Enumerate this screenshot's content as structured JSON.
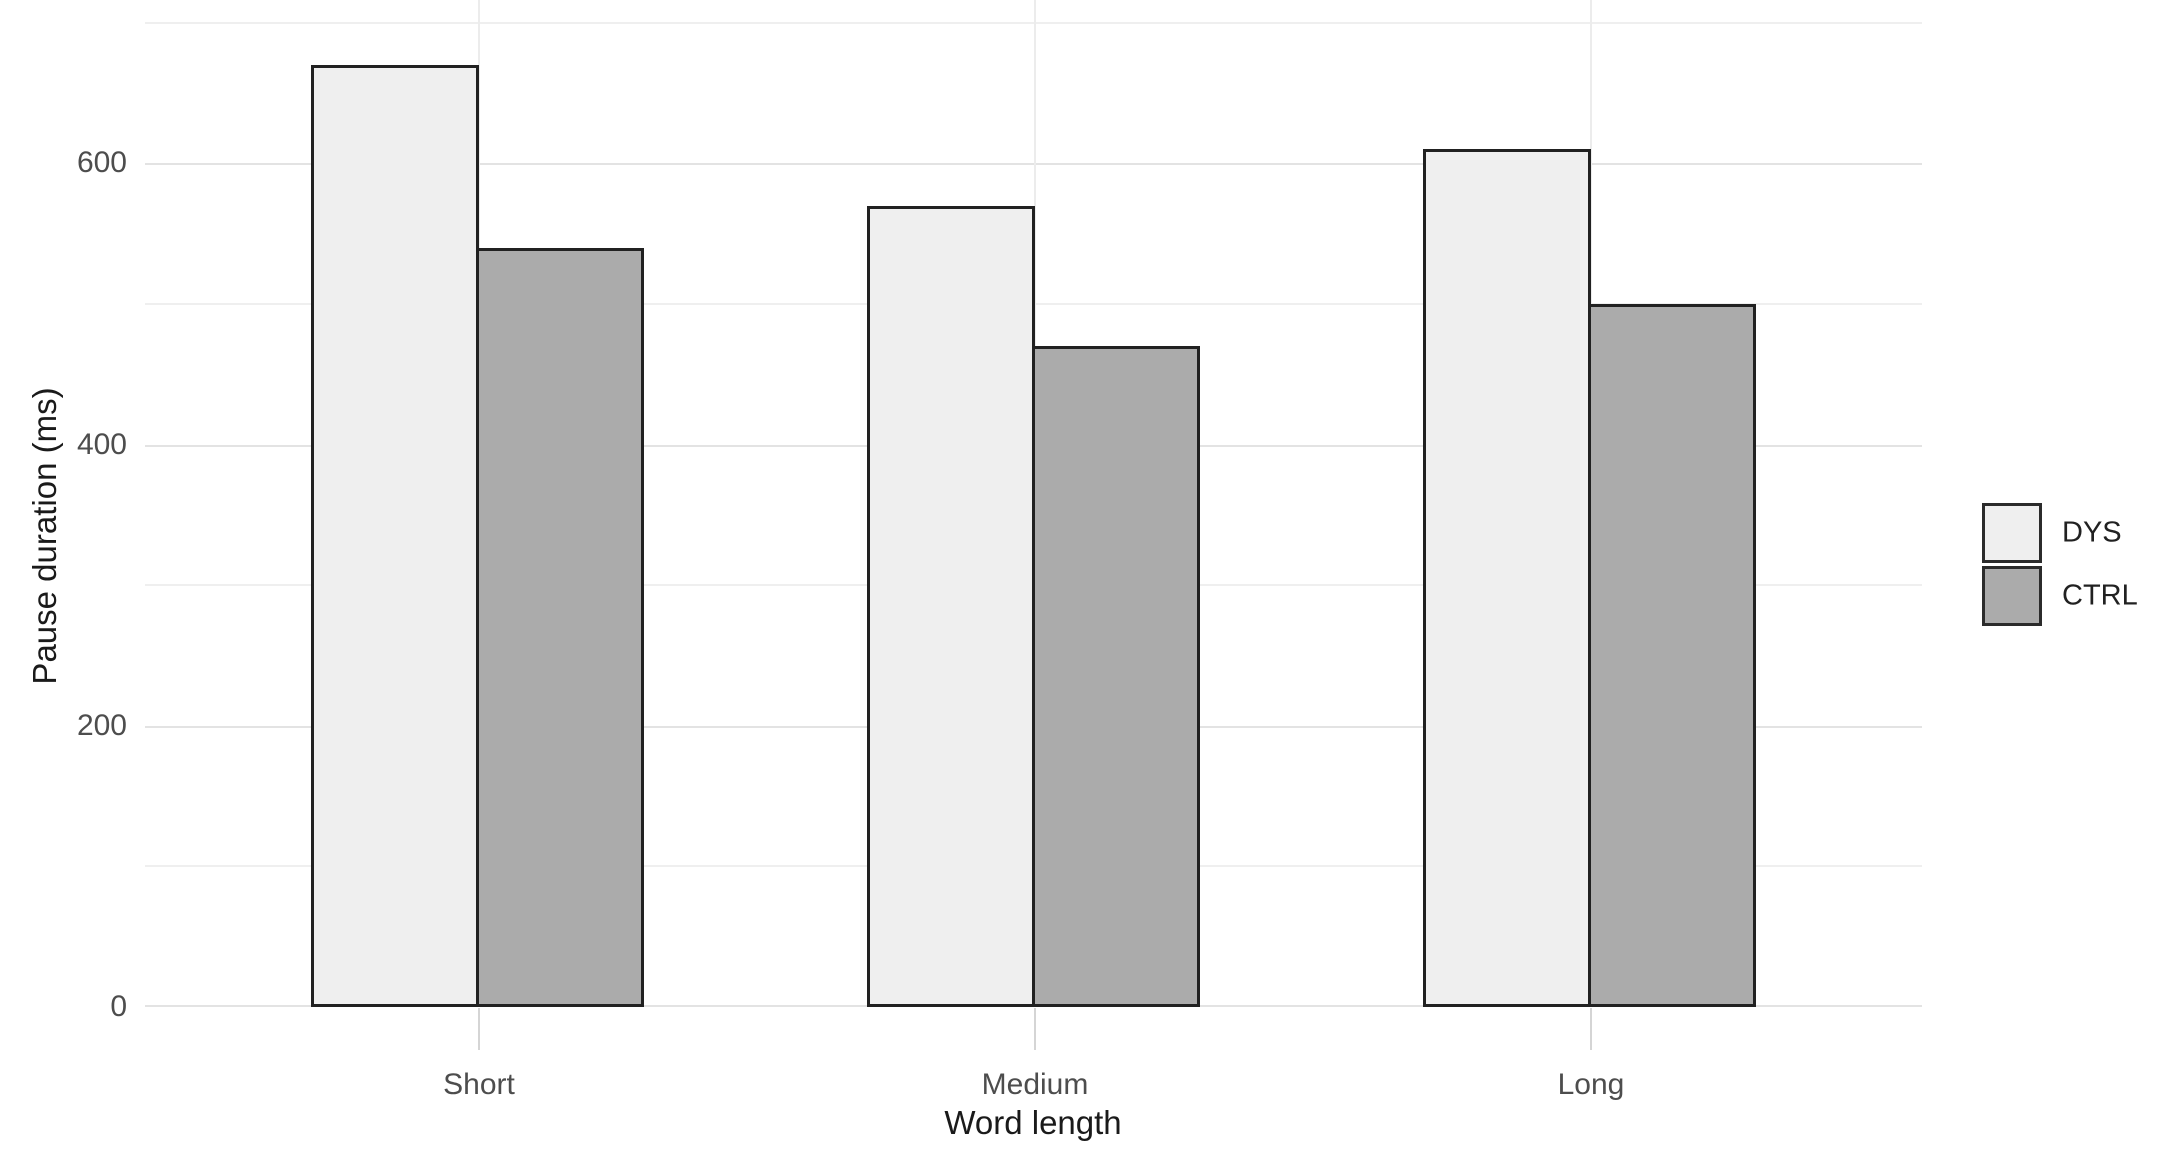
{
  "chart_data": {
    "type": "bar",
    "title": "",
    "categories": [
      "Short",
      "Medium",
      "Long"
    ],
    "series": [
      {
        "name": "DYS",
        "values": [
          670,
          570,
          610
        ]
      },
      {
        "name": "CTRL",
        "values": [
          540,
          470,
          500
        ]
      }
    ],
    "xlabel": "Word length",
    "ylabel": "Pause duration (ms)",
    "ylim": [
      0,
      716
    ],
    "yticks": [
      0,
      200,
      400,
      600
    ],
    "yticks_minor": [
      100,
      300,
      500,
      700
    ],
    "grid": "horizontal major+minor light gray; vertical gridline at each category center",
    "legend_position": "right-middle",
    "legend_entries": [
      "DYS",
      "CTRL"
    ]
  },
  "colors": {
    "background": "#ffffff",
    "dys_fill": "#efefef",
    "ctrl_fill": "#ababab",
    "bar_border": "#212121",
    "grid_major": "#e3e3e3",
    "grid_minor": "#efefef",
    "grid_vertical": "#ececec",
    "tick_mark": "#d5d5d5",
    "tick_label_text": "#4d4d4d",
    "axis_title_text": "#1a1a1a",
    "legend_text": "#212121"
  },
  "legend": {
    "items": [
      {
        "label": "DYS",
        "color": "#efefef"
      },
      {
        "label": "CTRL",
        "color": "#ababab"
      }
    ]
  },
  "axes": {
    "x": {
      "title": "Word length",
      "tick_labels": [
        "Short",
        "Medium",
        "Long"
      ]
    },
    "y": {
      "title": "Pause duration (ms)",
      "tick_labels": [
        "0",
        "200",
        "400",
        "600"
      ]
    }
  }
}
